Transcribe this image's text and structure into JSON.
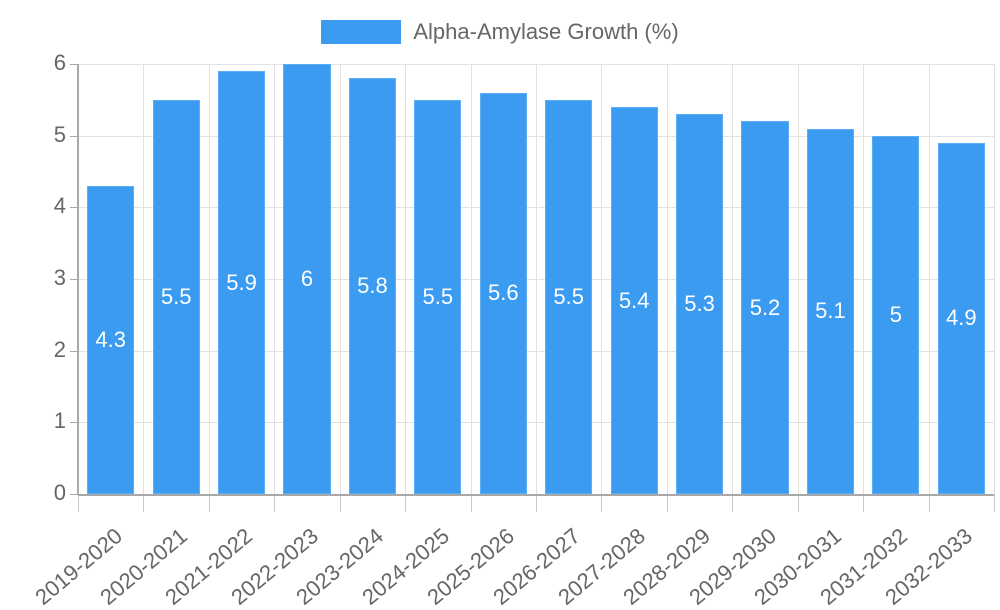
{
  "chart_data": {
    "type": "bar",
    "title": "",
    "xlabel": "",
    "ylabel": "",
    "legend": {
      "position": "top",
      "entries": [
        {
          "label": "Alpha-Amylase Growth (%)",
          "color": "#3a9bf0"
        }
      ]
    },
    "categories": [
      "2019-2020",
      "2020-2021",
      "2021-2022",
      "2022-2023",
      "2023-2024",
      "2024-2025",
      "2025-2026",
      "2026-2027",
      "2027-2028",
      "2028-2029",
      "2029-2030",
      "2030-2031",
      "2031-2032",
      "2032-2033"
    ],
    "series": [
      {
        "name": "Alpha-Amylase Growth (%)",
        "color": "#3a9bf0",
        "values": [
          4.3,
          5.5,
          5.9,
          6,
          5.8,
          5.5,
          5.6,
          5.5,
          5.4,
          5.3,
          5.2,
          5.1,
          5,
          4.9
        ]
      }
    ],
    "ylim": [
      0,
      6
    ],
    "yticks": [
      0,
      1,
      2,
      3,
      4,
      5,
      6
    ],
    "grid": true,
    "data_labels": true
  },
  "legend": {
    "label": "Alpha-Amylase Growth (%)"
  }
}
